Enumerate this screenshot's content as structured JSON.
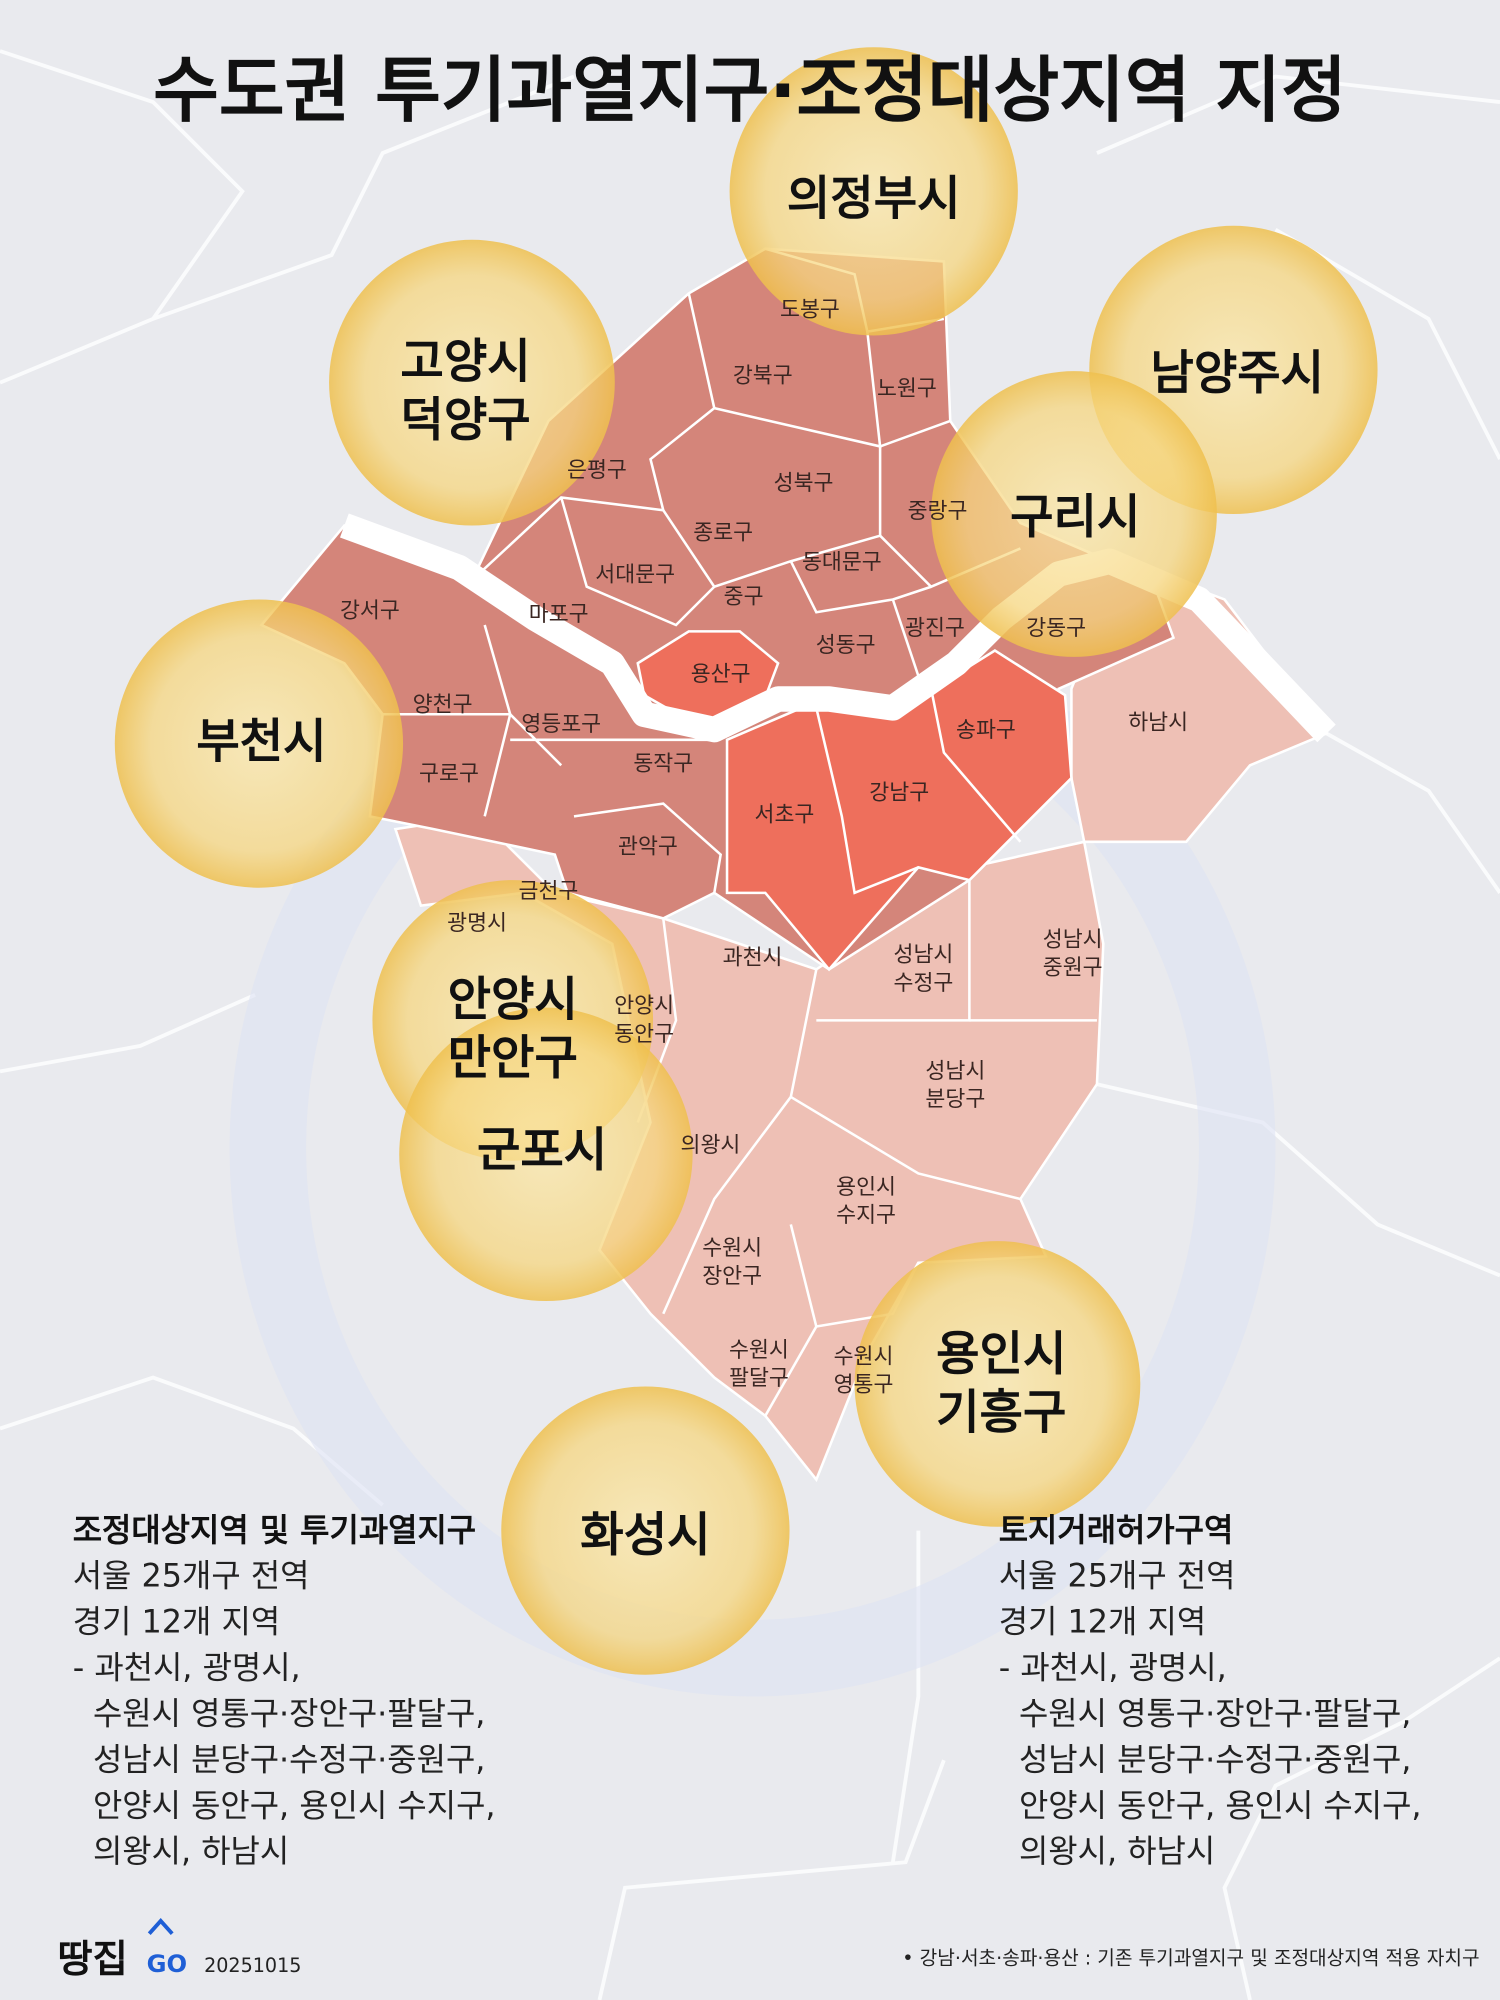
{
  "title": "수도권 투기과열지구·조정대상지역 지정",
  "colors": {
    "background": "#e9eaee",
    "seoul": "#d4857a",
    "seoul_core": "#ee6f5c",
    "gyeonggi": "#eec0b5",
    "circle": "#f3c962",
    "logo_accent": "#1f5fd6"
  },
  "seoul_districts": [
    "도봉구",
    "강북구",
    "노원구",
    "은평구",
    "성북구",
    "중랑구",
    "종로구",
    "서대문구",
    "동대문구",
    "강서구",
    "마포구",
    "중구",
    "성동구",
    "광진구",
    "강동구",
    "용산구",
    "양천구",
    "영등포구",
    "동작구",
    "송파구",
    "구로구",
    "서초구",
    "강남구",
    "관악구",
    "금천구"
  ],
  "gyeonggi_areas": {
    "hanam": "하남시",
    "gwangmyeong": "광명시",
    "gwacheon": "과천시",
    "uiwang": "의왕시",
    "seongnam_sujeong": [
      "성남시",
      "수정구"
    ],
    "seongnam_jungwon": [
      "성남시",
      "중원구"
    ],
    "seongnam_bundang": [
      "성남시",
      "분당구"
    ],
    "anyang_dongan": [
      "안양시",
      "동안구"
    ],
    "yongin_suji": [
      "용인시",
      "수지구"
    ],
    "suwon_jangan": [
      "수원시",
      "장안구"
    ],
    "suwon_paldal": [
      "수원시",
      "팔달구"
    ],
    "suwon_yeongtong": [
      "수원시",
      "영통구"
    ]
  },
  "highlight_circles": {
    "uijeongbu": [
      "의정부시"
    ],
    "goyang": [
      "고양시",
      "덕양구"
    ],
    "namyangju": [
      "남양주시"
    ],
    "guri": [
      "구리시"
    ],
    "bucheon": [
      "부천시"
    ],
    "anyang_manan": [
      "안양시",
      "만안구"
    ],
    "gunpo": [
      "군포시"
    ],
    "yongin_giheung": [
      "용인시",
      "기흥구"
    ],
    "hwaseong": [
      "화성시"
    ]
  },
  "legend_left": {
    "heading": "조정대상지역 및 투기과열지구",
    "lines": [
      "서울 25개구 전역",
      "경기 12개 지역",
      "- 과천시, 광명시,",
      "  수원시 영통구·장안구·팔달구,",
      "  성남시 분당구·수정구·중원구,",
      "  안양시 동안구, 용인시 수지구,",
      "  의왕시, 하남시"
    ]
  },
  "legend_right": {
    "heading": "토지거래허가구역",
    "lines": [
      "서울 25개구 전역",
      "경기 12개 지역",
      "- 과천시, 광명시,",
      "  수원시 영통구·장안구·팔달구,",
      "  성남시 분당구·수정구·중원구,",
      "  안양시 동안구, 용인시 수지구,",
      "  의왕시, 하남시"
    ]
  },
  "footer": {
    "logo_text": "땅집",
    "logo_go": "GO",
    "date": "20251015",
    "note": "• 강남·서초·송파·용산 : 기존 투기과열지구 및 조정대상지역 적용 자치구"
  }
}
